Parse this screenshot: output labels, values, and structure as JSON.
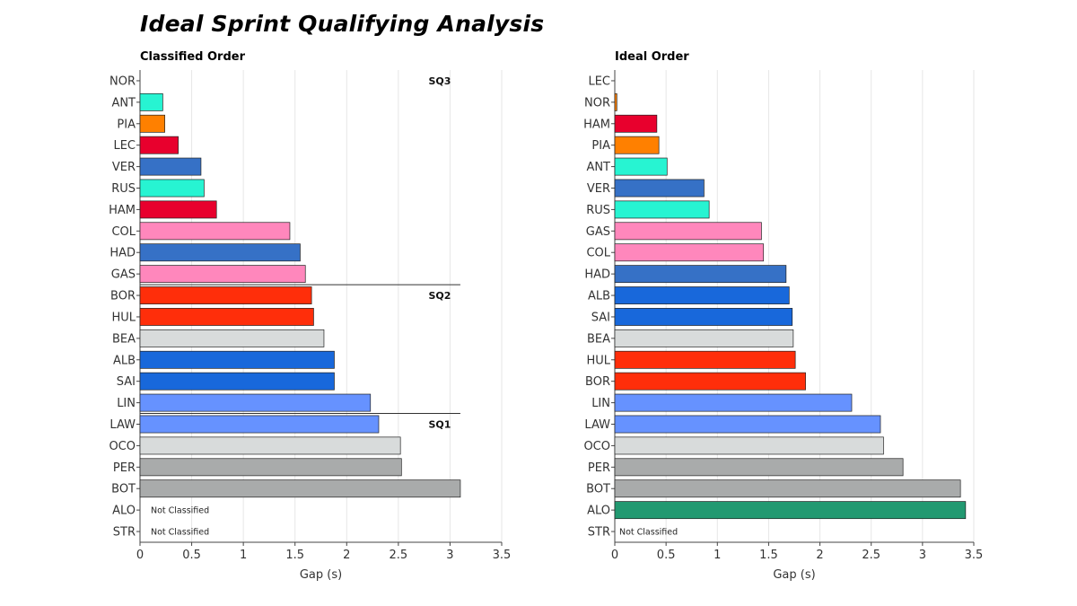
{
  "title": "Ideal Sprint Qualifying Analysis",
  "colors": {
    "teal": "#27F4D2",
    "orange": "#FF8000",
    "red": "#E8002D",
    "blue_rb": "#3671C6",
    "pink": "#FF87BC",
    "blue_vcarb": "#4F79D4",
    "red_sauber": "#FF2E0A",
    "grey_light": "#D8DBDB",
    "blue_williams": "#1868DB",
    "blue_light": "#6692FF",
    "grey_mid": "#A9ABAB",
    "green": "#229971"
  },
  "chart_data": [
    {
      "type": "bar",
      "orientation": "horizontal",
      "title": "Classified Order",
      "xlabel": "Gap (s)",
      "xlim": [
        0,
        3.5
      ],
      "xticks": [
        "0",
        "0.5",
        "1",
        "1.5",
        "2",
        "2.5",
        "3",
        "3.5"
      ],
      "grid": "vertical",
      "categories": [
        "NOR",
        "ANT",
        "PIA",
        "LEC",
        "VER",
        "RUS",
        "HAM",
        "COL",
        "HAD",
        "GAS",
        "BOR",
        "HUL",
        "BEA",
        "ALB",
        "SAI",
        "LIN",
        "LAW",
        "OCO",
        "PER",
        "BOT",
        "ALO",
        "STR"
      ],
      "values": [
        0,
        0.22,
        0.24,
        0.37,
        0.59,
        0.62,
        0.74,
        1.45,
        1.55,
        1.6,
        1.66,
        1.68,
        1.78,
        1.88,
        1.88,
        2.23,
        2.31,
        2.52,
        2.53,
        3.1,
        null,
        null
      ],
      "colors": [
        "#FF8000",
        "#27F4D2",
        "#FF8000",
        "#E8002D",
        "#3671C6",
        "#27F4D2",
        "#E8002D",
        "#FF87BC",
        "#3671C6",
        "#FF87BC",
        "#FF2E0A",
        "#FF2E0A",
        "#D8DBDB",
        "#1868DB",
        "#1868DB",
        "#6692FF",
        "#6692FF",
        "#D8DBDB",
        "#A9ABAB",
        "#A9ABAB",
        "#229971",
        "#229971"
      ],
      "annotations": [
        {
          "row": 0,
          "text": "SQ3"
        },
        {
          "row": 10,
          "text": "SQ2"
        },
        {
          "row": 16,
          "text": "SQ1"
        },
        {
          "row": 20,
          "text": "Not Classified"
        },
        {
          "row": 21,
          "text": "Not Classified"
        }
      ],
      "separators_after_rows": [
        9,
        15
      ]
    },
    {
      "type": "bar",
      "orientation": "horizontal",
      "title": "Ideal Order",
      "xlabel": "Gap (s)",
      "xlim": [
        0,
        3.5
      ],
      "xticks": [
        "0",
        "0.5",
        "1",
        "1.5",
        "2",
        "2.5",
        "3",
        "3.5"
      ],
      "grid": "vertical",
      "categories": [
        "LEC",
        "NOR",
        "HAM",
        "PIA",
        "ANT",
        "VER",
        "RUS",
        "GAS",
        "COL",
        "HAD",
        "ALB",
        "SAI",
        "BEA",
        "HUL",
        "BOR",
        "LIN",
        "LAW",
        "OCO",
        "PER",
        "BOT",
        "ALO",
        "STR"
      ],
      "values": [
        0,
        0.02,
        0.41,
        0.43,
        0.51,
        0.87,
        0.92,
        1.43,
        1.45,
        1.67,
        1.7,
        1.73,
        1.74,
        1.76,
        1.86,
        2.31,
        2.59,
        2.62,
        2.81,
        3.37,
        3.42,
        null
      ],
      "colors": [
        "#E8002D",
        "#FF8000",
        "#E8002D",
        "#FF8000",
        "#27F4D2",
        "#3671C6",
        "#27F4D2",
        "#FF87BC",
        "#FF87BC",
        "#3671C6",
        "#1868DB",
        "#1868DB",
        "#D8DBDB",
        "#FF2E0A",
        "#FF2E0A",
        "#6692FF",
        "#6692FF",
        "#D8DBDB",
        "#A9ABAB",
        "#A9ABAB",
        "#229971",
        "#229971"
      ],
      "annotations": [
        {
          "row": 21,
          "text": "Not Classified"
        }
      ],
      "separators_after_rows": []
    }
  ]
}
